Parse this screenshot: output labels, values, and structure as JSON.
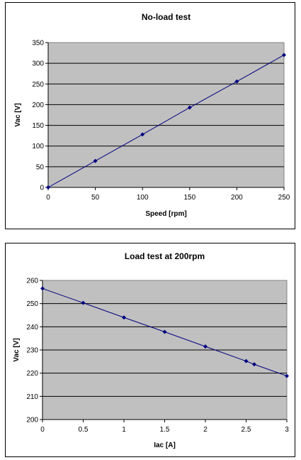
{
  "chart_data": [
    {
      "type": "line",
      "title": "No-load test",
      "xlabel": "Speed [rpm]",
      "ylabel": "Vac [V]",
      "xlim": [
        0,
        250
      ],
      "ylim": [
        0,
        350
      ],
      "xticks": [
        0,
        50,
        100,
        150,
        200,
        250
      ],
      "yticks": [
        0,
        50,
        100,
        150,
        200,
        250,
        300,
        350
      ],
      "grid": "horizontal",
      "legend": "none",
      "plot_background": "#c0c0c0",
      "series_color": "#000080",
      "series": [
        {
          "x": [
            0,
            50,
            100,
            150,
            200,
            250
          ],
          "y": [
            0,
            64,
            128,
            193,
            256,
            320
          ]
        }
      ]
    },
    {
      "type": "line",
      "title": "Load test at 200rpm",
      "xlabel": "Iac [A]",
      "ylabel": "Vac [V]",
      "xlim": [
        0,
        3
      ],
      "ylim": [
        200,
        260
      ],
      "xticks": [
        0,
        0.5,
        1,
        1.5,
        2,
        2.5,
        3
      ],
      "yticks": [
        200,
        210,
        220,
        230,
        240,
        250,
        260
      ],
      "grid": "horizontal",
      "legend": "none",
      "plot_background": "#c0c0c0",
      "series_color": "#000080",
      "series": [
        {
          "x": [
            0,
            0.5,
            1,
            1.5,
            2,
            2.5,
            2.6,
            3
          ],
          "y": [
            256.5,
            250.3,
            244,
            237.8,
            231.5,
            225.2,
            223.8,
            218.8
          ]
        }
      ]
    }
  ]
}
